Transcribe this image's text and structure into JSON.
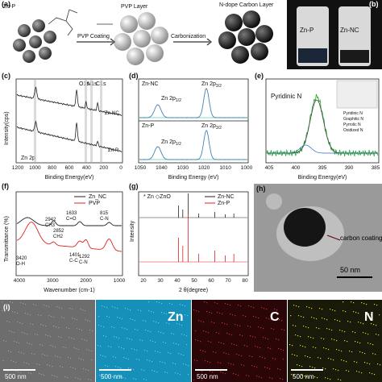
{
  "panel_a": {
    "label": "(a)",
    "cluster_label": "Zn-P",
    "shell_label": "PVP Layer",
    "carbon_label": "N-dope Carbon Layer",
    "step_1": "PVP Coating",
    "step_2": "Carbonization"
  },
  "panel_b": {
    "label": "(b)",
    "samples": [
      "Zn-P",
      "Zn-NC"
    ]
  },
  "panel_c": {
    "label": "(c)",
    "y_axis": "Intensity(cps)",
    "x_axis": "Binding Energy(eV)",
    "xticks": [
      "1200",
      "1000",
      "800",
      "600",
      "400",
      "200",
      "0"
    ],
    "peaks": [
      "O1s",
      "N1s",
      "C1s"
    ],
    "series": [
      "Zn-NC",
      "Zn-P"
    ],
    "annotation": "Zn 2p"
  },
  "panel_d": {
    "label": "(d)",
    "x_axis": "Binding Energy (eV)",
    "xticks": [
      "1050",
      "1040",
      "1030",
      "1020",
      "1010",
      "1000"
    ],
    "series": [
      "Zn-NC",
      "Zn-P"
    ],
    "peak_1": {
      "main": "Zn 2p",
      "sub": "1/2"
    },
    "peak_2": {
      "main": "Zn 2p",
      "sub": "3/2"
    }
  },
  "panel_e": {
    "label": "(e)",
    "annotation": "Pyridinic N",
    "x_axis": "Binding Energy(eV)",
    "xticks": [
      "405",
      "400",
      "395",
      "390",
      "385"
    ],
    "legend": [
      "Pyridinic N",
      "Graphitic N",
      "Pyrrolic N",
      "Oxidized N"
    ]
  },
  "panel_f": {
    "label": "(f)",
    "y_axis": "Transmittance (%)",
    "x_axis": "Wavenumber (cm-1)",
    "xticks": [
      "4000",
      "3000",
      "2000",
      "1000"
    ],
    "series": [
      "Zn_NC",
      "PVP"
    ],
    "bands": [
      [
        "2942",
        "CH3"
      ],
      [
        "2852",
        "CH2"
      ],
      [
        "1633",
        "C=O"
      ],
      [
        "815",
        "C-N"
      ],
      [
        "3420",
        "O-H"
      ],
      [
        "1401",
        "C-C"
      ],
      [
        "1292",
        "C-N"
      ]
    ]
  },
  "panel_g": {
    "label": "(g)",
    "y_axis": "Intensity",
    "x_axis": "2 θ(degree)",
    "xticks": [
      "20",
      "30",
      "40",
      "50",
      "60",
      "70",
      "80"
    ],
    "series": [
      "Zn-NC",
      "Zn-P"
    ],
    "phases": [
      "Zn",
      "ZnO"
    ]
  },
  "panel_h": {
    "label": "(h)",
    "annotation": "carbon coating",
    "scale_bar": "50 nm"
  },
  "panel_i": {
    "label": "(i)",
    "maps": [
      "Zn",
      "C",
      "N"
    ],
    "scale_bars": [
      "500 nm",
      "500 nm",
      "500 nm",
      "500 nm"
    ]
  }
}
